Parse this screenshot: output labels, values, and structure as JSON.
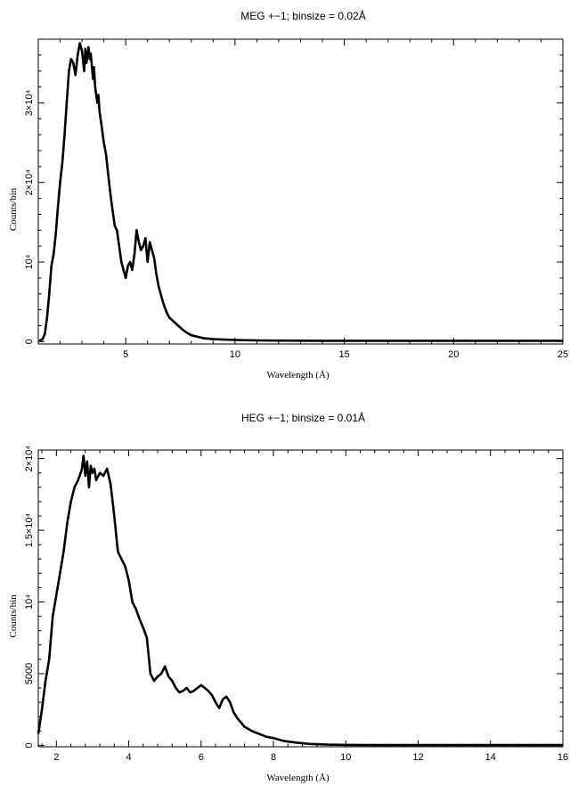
{
  "chart_data": [
    {
      "type": "line",
      "title": "MEG +−1; binsize = 0.02Å",
      "xlabel": "Wavelength (Å)",
      "ylabel": "Counts/bin",
      "xlim": [
        1.0,
        25.0
      ],
      "ylim": [
        -300,
        38000
      ],
      "grid": false,
      "xticks": [
        5,
        10,
        15,
        20,
        25
      ],
      "xtick_labels": [
        "5",
        "10",
        "15",
        "20",
        "25"
      ],
      "yticks": [
        0,
        10000,
        20000,
        30000
      ],
      "ytick_labels": [
        "0",
        "10⁴",
        "2×10⁴",
        "3×10⁴"
      ],
      "series": [
        {
          "x": [
            1.05,
            1.2,
            1.3,
            1.4,
            1.5,
            1.6,
            1.7,
            1.8,
            1.9,
            2.0,
            2.1,
            2.2,
            2.3,
            2.4,
            2.5,
            2.6,
            2.7,
            2.8,
            2.9,
            3.0,
            3.1,
            3.15,
            3.2,
            3.3,
            3.35,
            3.4,
            3.5,
            3.55,
            3.6,
            3.7,
            3.75,
            3.8,
            3.9,
            4.0,
            4.1,
            4.2,
            4.3,
            4.4,
            4.5,
            4.6,
            4.7,
            4.8,
            4.9,
            5.0,
            5.1,
            5.2,
            5.3,
            5.4,
            5.5,
            5.6,
            5.7,
            5.8,
            5.9,
            6.0,
            6.1,
            6.2,
            6.3,
            6.4,
            6.5,
            6.6,
            6.7,
            6.8,
            6.9,
            7.0,
            7.2,
            7.4,
            7.6,
            7.8,
            8.0,
            8.3,
            8.6,
            9.0,
            9.5,
            10.0,
            11.0,
            12.0,
            14.0,
            16.0,
            18.0,
            20.0,
            22.0,
            24.0,
            25.0
          ],
          "values": [
            100,
            300,
            1000,
            3000,
            6000,
            9500,
            11000,
            13500,
            17000,
            20000,
            22500,
            26000,
            30000,
            34000,
            35500,
            35000,
            33500,
            36000,
            37500,
            36500,
            34000,
            36800,
            35000,
            37000,
            35500,
            36200,
            33000,
            34500,
            32000,
            30000,
            31000,
            29000,
            27000,
            25000,
            23500,
            21000,
            18500,
            16500,
            14500,
            14000,
            12000,
            10000,
            9000,
            8000,
            9500,
            10000,
            9000,
            11000,
            14000,
            12500,
            11500,
            12000,
            13000,
            10000,
            12500,
            11500,
            10500,
            8500,
            7000,
            6000,
            5000,
            4200,
            3500,
            3000,
            2500,
            2000,
            1500,
            1100,
            800,
            600,
            400,
            300,
            250,
            200,
            150,
            120,
            100,
            100,
            100,
            100,
            100,
            100,
            100
          ]
        }
      ]
    },
    {
      "type": "line",
      "title": "HEG +−1; binsize = 0.01Å",
      "xlabel": "Wavelength (Å)",
      "ylabel": "Counts/bin",
      "xlim": [
        1.5,
        16.0
      ],
      "ylim": [
        -100,
        20600
      ],
      "grid": false,
      "xticks": [
        2,
        4,
        6,
        8,
        10,
        12,
        14,
        16
      ],
      "xtick_labels": [
        "2",
        "4",
        "6",
        "8",
        "10",
        "12",
        "14",
        "16"
      ],
      "yticks": [
        0,
        5000,
        10000,
        15000,
        20000
      ],
      "ytick_labels": [
        "0",
        "5000",
        "10⁴",
        "1.5×10⁴",
        "2×10⁴"
      ],
      "series": [
        {
          "x": [
            1.5,
            1.6,
            1.7,
            1.8,
            1.9,
            2.0,
            2.1,
            2.2,
            2.3,
            2.4,
            2.5,
            2.6,
            2.7,
            2.75,
            2.8,
            2.85,
            2.9,
            2.95,
            3.0,
            3.05,
            3.1,
            3.2,
            3.3,
            3.4,
            3.5,
            3.6,
            3.7,
            3.8,
            3.9,
            4.0,
            4.1,
            4.2,
            4.3,
            4.4,
            4.5,
            4.6,
            4.7,
            4.8,
            4.9,
            5.0,
            5.1,
            5.2,
            5.3,
            5.4,
            5.5,
            5.6,
            5.7,
            5.8,
            5.9,
            6.0,
            6.1,
            6.2,
            6.3,
            6.4,
            6.5,
            6.6,
            6.7,
            6.8,
            6.9,
            7.0,
            7.2,
            7.4,
            7.6,
            7.8,
            8.0,
            8.3,
            8.6,
            9.0,
            9.5,
            10.0,
            11.0,
            12.0,
            13.0,
            14.0,
            15.0,
            16.0
          ],
          "values": [
            800,
            2500,
            4500,
            6000,
            9000,
            10500,
            12000,
            13500,
            15500,
            17000,
            18000,
            18500,
            19200,
            20200,
            18800,
            19800,
            18000,
            19500,
            19000,
            19300,
            18500,
            19000,
            18800,
            19300,
            18200,
            16000,
            13500,
            13000,
            12500,
            11500,
            10000,
            9500,
            8800,
            8200,
            7500,
            5000,
            4500,
            4800,
            5000,
            5500,
            4800,
            4500,
            4000,
            3700,
            3800,
            4000,
            3700,
            3800,
            4000,
            4200,
            4000,
            3800,
            3500,
            3000,
            2600,
            3200,
            3400,
            3000,
            2300,
            1900,
            1300,
            1000,
            800,
            600,
            500,
            300,
            200,
            100,
            50,
            30,
            20,
            20,
            20,
            20,
            20,
            20
          ]
        }
      ]
    }
  ]
}
